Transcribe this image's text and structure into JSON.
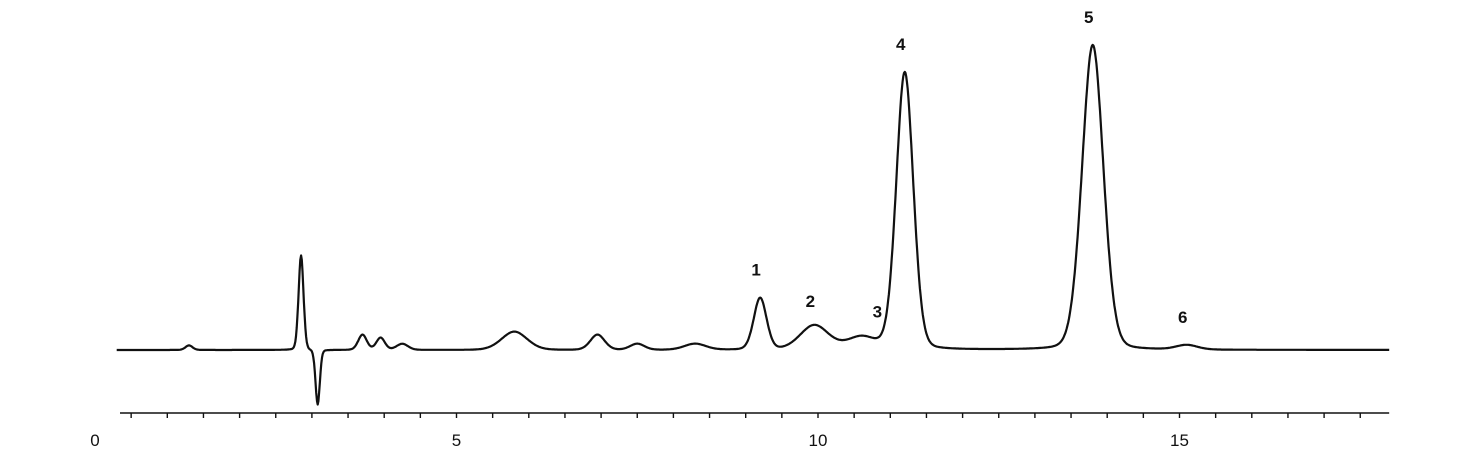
{
  "chart_data": {
    "type": "line",
    "title": "",
    "xlabel": "",
    "ylabel": "",
    "xlim": [
      0,
      17.9
    ],
    "ylim": [
      -20,
      105
    ],
    "x_ticks": [
      0,
      5,
      10,
      15
    ],
    "x_tick_labels": [
      "0",
      "5",
      "10",
      "15"
    ],
    "minor_tick_interval": 0.5,
    "grid": false,
    "line_color": "#111111",
    "trace_range": [
      0.3,
      17.9
    ],
    "peaks": [
      {
        "label": "1",
        "time": 9.2,
        "height": 17,
        "sigma": 0.09
      },
      {
        "label": "2",
        "time": 9.95,
        "height": 8,
        "sigma": 0.2
      },
      {
        "label": "3",
        "time": 10.6,
        "height": 4,
        "sigma": 0.2
      },
      {
        "label": "4",
        "time": 11.2,
        "height": 91,
        "sigma": 0.12
      },
      {
        "label": "5",
        "time": 13.8,
        "height": 100,
        "sigma": 0.15
      },
      {
        "label": "6",
        "time": 15.1,
        "height": 1.5,
        "sigma": 0.15
      }
    ],
    "minor_features": [
      {
        "time": 1.3,
        "height": 1.5,
        "sigma": 0.05
      },
      {
        "time": 2.85,
        "height": 31,
        "sigma": 0.035
      },
      {
        "time": 3.08,
        "height": -18,
        "sigma": 0.03
      },
      {
        "time": 3.7,
        "height": 5,
        "sigma": 0.06
      },
      {
        "time": 3.95,
        "height": 4,
        "sigma": 0.06
      },
      {
        "time": 4.25,
        "height": 2,
        "sigma": 0.08
      },
      {
        "time": 5.8,
        "height": 6,
        "sigma": 0.18
      },
      {
        "time": 6.95,
        "height": 5,
        "sigma": 0.1
      },
      {
        "time": 7.5,
        "height": 2,
        "sigma": 0.1
      },
      {
        "time": 8.3,
        "height": 2,
        "sigma": 0.15
      }
    ]
  }
}
